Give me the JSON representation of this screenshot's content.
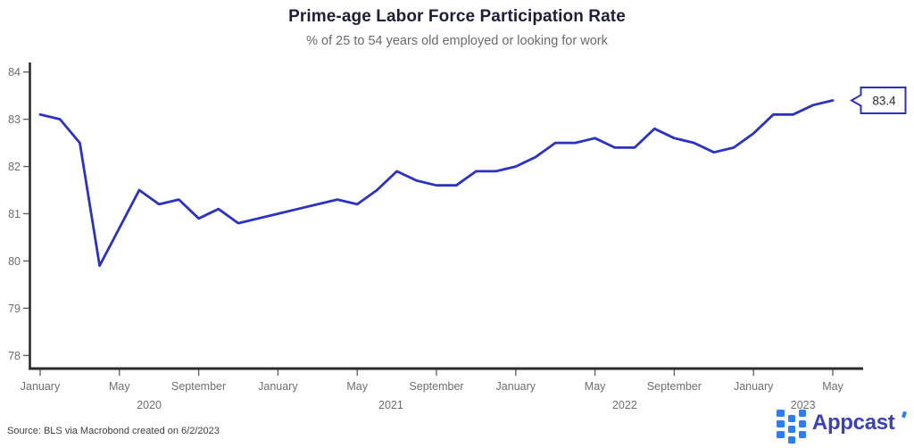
{
  "header": {
    "title": "Prime-age Labor Force Participation Rate",
    "subtitle": "% of 25 to 54 years old employed or looking for work"
  },
  "chart_data": {
    "type": "line",
    "title": "Prime-age Labor Force Participation Rate",
    "subtitle": "% of 25 to 54 years old employed or looking for work",
    "xlabel": "",
    "ylabel": "",
    "ylim": [
      78,
      84
    ],
    "grid": false,
    "legend": false,
    "line_color": "#2c32c0",
    "axis_color": "#2b2b2b",
    "tick_label_color": "#6e6e6e",
    "x": [
      "2020-01",
      "2020-02",
      "2020-03",
      "2020-04",
      "2020-05",
      "2020-06",
      "2020-07",
      "2020-08",
      "2020-09",
      "2020-10",
      "2020-11",
      "2020-12",
      "2021-01",
      "2021-02",
      "2021-03",
      "2021-04",
      "2021-05",
      "2021-06",
      "2021-07",
      "2021-08",
      "2021-09",
      "2021-10",
      "2021-11",
      "2021-12",
      "2022-01",
      "2022-02",
      "2022-03",
      "2022-04",
      "2022-05",
      "2022-06",
      "2022-07",
      "2022-08",
      "2022-09",
      "2022-10",
      "2022-11",
      "2022-12",
      "2023-01",
      "2023-02",
      "2023-03",
      "2023-04",
      "2023-05"
    ],
    "series": [
      {
        "name": "Prime-age labor force participation rate (%)",
        "values": [
          83.1,
          83.0,
          82.5,
          79.9,
          80.7,
          81.5,
          81.2,
          81.3,
          80.9,
          81.1,
          80.8,
          80.9,
          81.0,
          81.1,
          81.2,
          81.3,
          81.2,
          81.5,
          81.9,
          81.7,
          81.6,
          81.6,
          81.9,
          81.9,
          82.0,
          82.2,
          82.5,
          82.5,
          82.6,
          82.4,
          82.4,
          82.8,
          82.6,
          82.5,
          82.3,
          82.4,
          82.7,
          83.1,
          83.1,
          83.3,
          83.4
        ]
      }
    ],
    "y_ticks": [
      78,
      79,
      80,
      81,
      82,
      83,
      84
    ],
    "x_tick_labels": [
      {
        "m": 0,
        "label": "January"
      },
      {
        "m": 4,
        "label": "May"
      },
      {
        "m": 8,
        "label": "September"
      },
      {
        "m": 12,
        "label": "January"
      },
      {
        "m": 16,
        "label": "May"
      },
      {
        "m": 20,
        "label": "September"
      },
      {
        "m": 24,
        "label": "January"
      },
      {
        "m": 28,
        "label": "May"
      },
      {
        "m": 32,
        "label": "September"
      },
      {
        "m": 36,
        "label": "January"
      },
      {
        "m": 40,
        "label": "May"
      }
    ],
    "year_labels": [
      {
        "m": 5.5,
        "label": "2020"
      },
      {
        "m": 17.7,
        "label": "2021"
      },
      {
        "m": 29.5,
        "label": "2022"
      },
      {
        "m": 38.5,
        "label": "2023"
      }
    ],
    "callout": {
      "label": "83.4",
      "value": 83.4,
      "text_color": "#2b2b2b",
      "fill": "#ffffff"
    }
  },
  "footer": {
    "source": "Source: BLS via Macrobond created on 6/2/2023",
    "logo_text": "Appcast"
  },
  "colors": {
    "line": "#2c32c0",
    "title": "#1e1e38",
    "subtitle": "#6a6a6a",
    "appcast_icon_blue": "#2e7cf6",
    "appcast_wordmark": "#3b41bd"
  }
}
